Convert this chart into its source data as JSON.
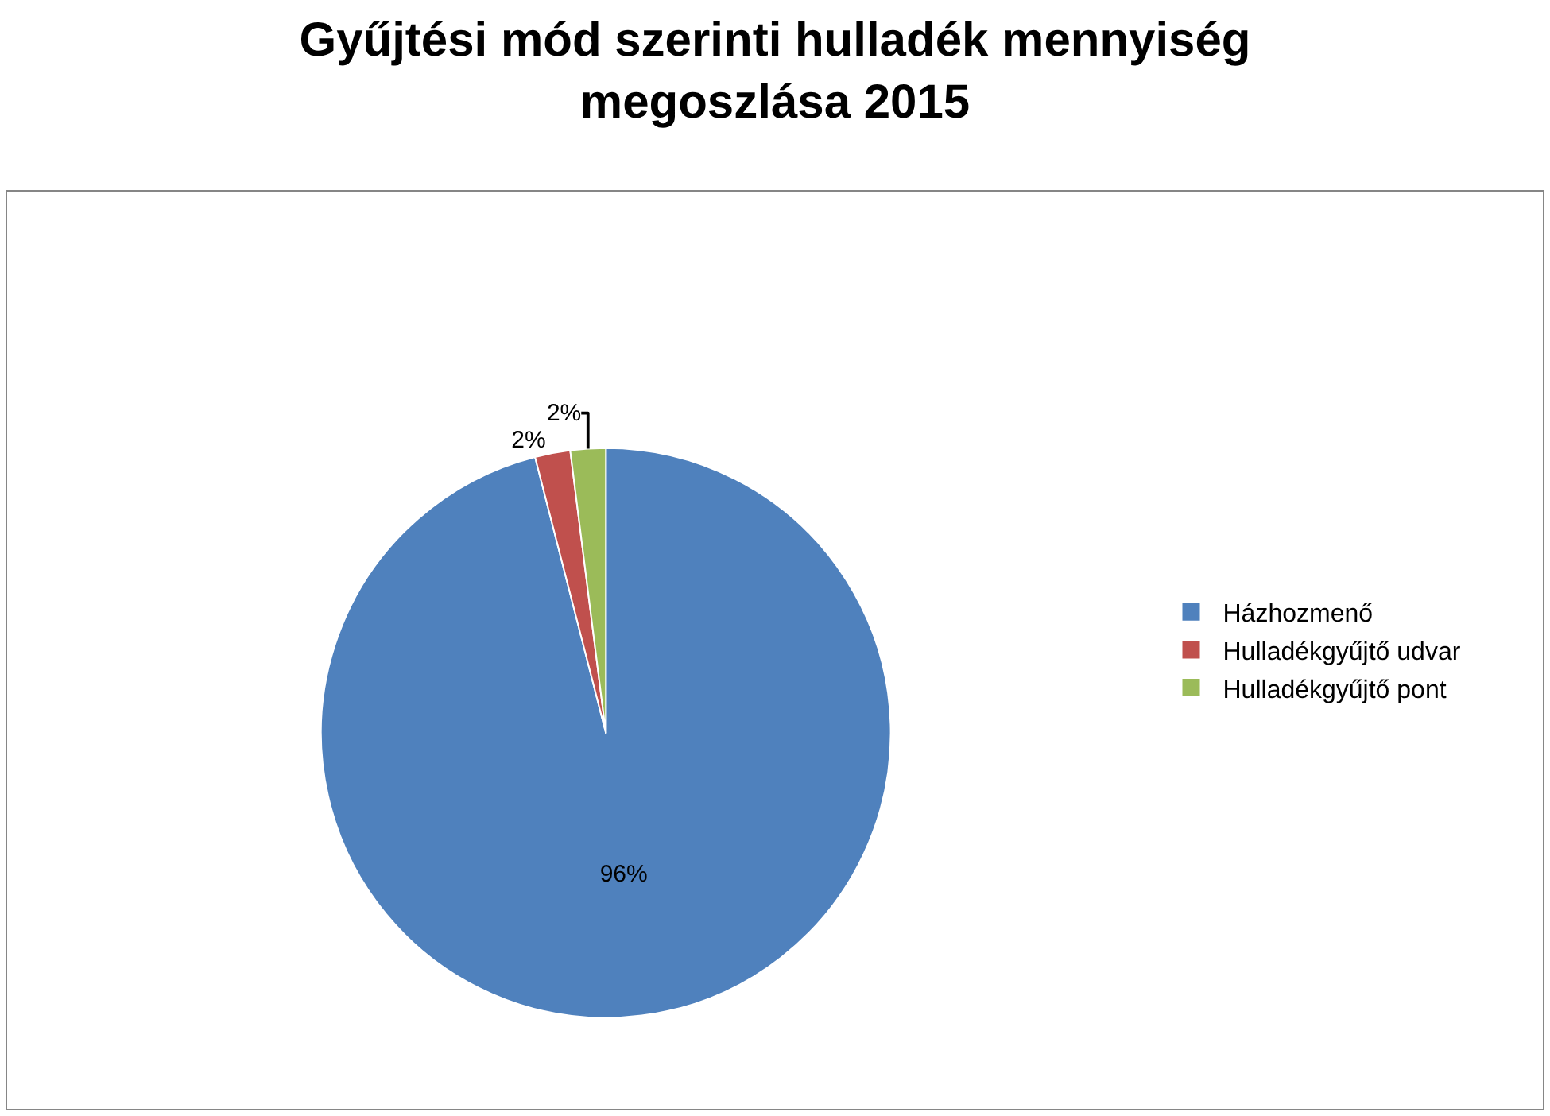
{
  "chart_data": {
    "type": "pie",
    "title": "Gyűjtési mód szerinti hulladék mennyiség\nmegoszlása 2015",
    "categories": [
      "Házhozmenő",
      "Hulladékgyűjtő udvar",
      "Hulladékgyűjtő pont"
    ],
    "values": [
      96,
      2,
      2
    ],
    "colors": [
      "#4f81bd",
      "#c0504d",
      "#9bbb59"
    ],
    "value_labels": [
      "96%",
      "2%",
      "2%"
    ],
    "legend": "right"
  }
}
